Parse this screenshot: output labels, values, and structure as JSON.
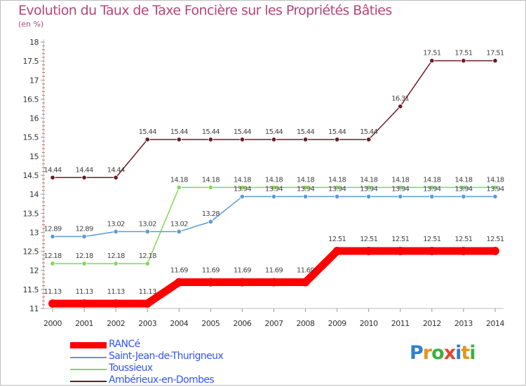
{
  "header": {
    "title": "Evolution du Taux de Taxe Foncière sur les Propriétés Bâties",
    "unit": "(en %)"
  },
  "logo": {
    "letters": [
      "P",
      "r",
      "o",
      "x",
      "i",
      "t",
      "i"
    ],
    "colors": [
      "#2f7fd0",
      "#e4951f",
      "#3eaf3e",
      "#e3452c",
      "#2f7fd0",
      "#e4951f",
      "#3eaf3e"
    ]
  },
  "chart_data": {
    "type": "line",
    "title": "Evolution du Taux de Taxe Foncière sur les Propriétés Bâties",
    "ylabel": "(en %)",
    "xlabel": "",
    "ylim": [
      11,
      18
    ],
    "yticks": [
      "11",
      "11.5",
      "12",
      "12.5",
      "13",
      "13.5",
      "14",
      "14.5",
      "15",
      "15.5",
      "16",
      "16.5",
      "17",
      "17.5",
      "18"
    ],
    "categories": [
      "2000",
      "2001",
      "2002",
      "2003",
      "2004",
      "2005",
      "2006",
      "2007",
      "2008",
      "2009",
      "2010",
      "2011",
      "2012",
      "2013",
      "2014"
    ],
    "grid": false,
    "legend": "bottom-left",
    "series": [
      {
        "name": "Ambérieux-en-Dombes",
        "color": "#6d1a26",
        "values": [
          14.44,
          14.44,
          14.44,
          15.44,
          15.44,
          15.44,
          15.44,
          15.44,
          15.44,
          15.44,
          15.44,
          16.31,
          17.51,
          17.51,
          17.51
        ],
        "labels": [
          "14.44",
          "14.44",
          "14.44",
          "15.44",
          "15.44",
          "15.44",
          "15.44",
          "15.44",
          "15.44",
          "15.44",
          "15.44",
          "16.31",
          "17.51",
          "17.51",
          "17.51"
        ]
      },
      {
        "name": "Toussieux",
        "color": "#7ed957",
        "values": [
          12.18,
          12.18,
          12.18,
          12.18,
          14.18,
          14.18,
          14.18,
          14.18,
          14.18,
          14.18,
          14.18,
          14.18,
          14.18,
          14.18,
          14.18
        ],
        "labels": [
          "12.18",
          "12.18",
          "12.18",
          "12.18",
          "14.18",
          "14.18",
          "14.18",
          "14.18",
          "14.18",
          "14.18",
          "14.18",
          "14.18",
          "14.18",
          "14.18",
          "14.18"
        ]
      },
      {
        "name": "Saint-Jean-de-Thurigneux",
        "color": "#5b9bd5",
        "values": [
          12.89,
          12.89,
          13.02,
          13.02,
          13.02,
          13.28,
          13.94,
          13.94,
          13.94,
          13.94,
          13.94,
          13.94,
          13.94,
          13.94,
          13.94
        ],
        "labels": [
          "12.89",
          "12.89",
          "13.02",
          "13.02",
          "13.02",
          "13.28",
          "13.94",
          "13.94",
          "13.94",
          "13.94",
          "13.94",
          "13.94",
          "13.94",
          "13.94",
          "13.94"
        ]
      },
      {
        "name": "RANCé",
        "color": "#ff0000",
        "values": [
          11.13,
          11.13,
          11.13,
          11.13,
          11.69,
          11.69,
          11.69,
          11.69,
          11.69,
          12.51,
          12.51,
          12.51,
          12.51,
          12.51,
          12.51
        ],
        "labels": [
          "11.13",
          "11.13",
          "11.13",
          "11.13",
          "11.69",
          "11.69",
          "11.69",
          "11.69",
          "11.69",
          "12.51",
          "12.51",
          "12.51",
          "12.51",
          "12.51",
          "12.51"
        ]
      }
    ]
  },
  "legend": {
    "items": [
      {
        "label": "RANCé",
        "color": "#ff0000"
      },
      {
        "label": "Saint-Jean-de-Thurigneux",
        "color": "#5b9bd5"
      },
      {
        "label": "Toussieux",
        "color": "#7ed957"
      },
      {
        "label": "Ambérieux-en-Dombes",
        "color": "#6d1a26"
      }
    ]
  }
}
